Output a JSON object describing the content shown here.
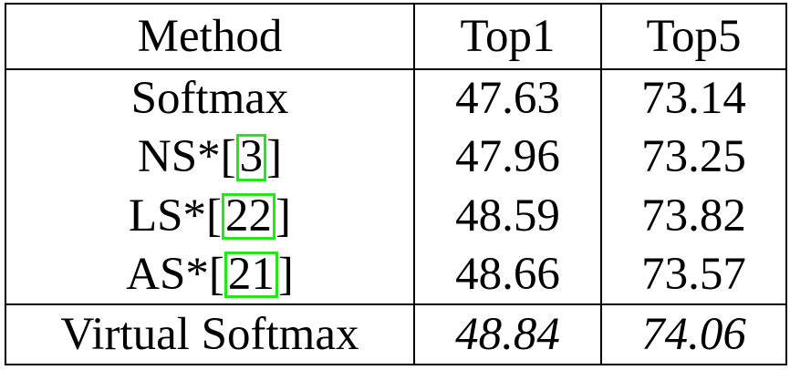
{
  "table": {
    "headers": [
      "Method",
      "Top1",
      "Top5"
    ],
    "rows": [
      {
        "method": "Softmax",
        "cite": "",
        "top1": "47.63",
        "top5": "73.14"
      },
      {
        "method": "NS*",
        "cite": "3",
        "top1": "47.96",
        "top5": "73.25"
      },
      {
        "method": "LS*",
        "cite": "22",
        "top1": "48.59",
        "top5": "73.82"
      },
      {
        "method": "AS*",
        "cite": "21",
        "top1": "48.66",
        "top5": "73.57"
      }
    ],
    "best": {
      "method": "Virtual Softmax",
      "top1": "48.84",
      "top5": "74.06"
    }
  },
  "colors": {
    "citation_box": "#22e81a",
    "rule": "#000000"
  }
}
